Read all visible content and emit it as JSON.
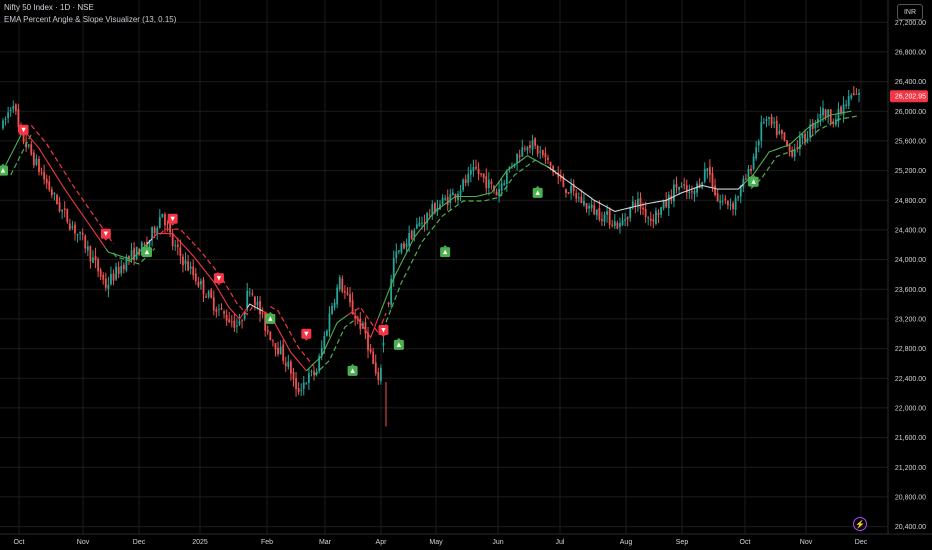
{
  "header": {
    "symbol_line": "Nifty 50 Index · 1D · NSE",
    "indicator_line": "EMA Percent Angle & Slope Visualizer (13, 0.15)"
  },
  "currency": "INR",
  "icons": {
    "replay": "lightning-icon"
  },
  "colors": {
    "background": "#000000",
    "grid": "#1c1c1c",
    "candle_up": "#26a69a",
    "candle_down": "#ef5350",
    "ema_up": "#4caf50",
    "ema_down": "#f23645",
    "ema_flat": "#d1d4dc",
    "last_price_bg": "#f23645",
    "signal_up": "#4caf50",
    "signal_down": "#f23645"
  },
  "chart_data": {
    "type": "candlestick",
    "y_axis": {
      "range": [
        20300,
        27500
      ],
      "ticks": [
        20400,
        20800,
        21200,
        21600,
        22000,
        22400,
        22800,
        23200,
        23600,
        24000,
        24400,
        24800,
        25200,
        25600,
        26000,
        26400,
        26800,
        27200
      ],
      "tick_labels": [
        "20,400.00",
        "20,800.00",
        "21,200.00",
        "21,600.00",
        "22,000.00",
        "22,400.00",
        "22,800.00",
        "23,200.00",
        "23,600.00",
        "24,000.00",
        "24,400.00",
        "24,800.00",
        "25,200.00",
        "25,600.00",
        "26,000.00",
        "26,400.00",
        "26,800.00",
        "27,200.00"
      ],
      "last_price": 26202.95,
      "last_price_label": "26,202.95"
    },
    "x_axis": {
      "labels": [
        "Oct",
        "Nov",
        "Dec",
        "2025",
        "Feb",
        "Mar",
        "Apr",
        "May",
        "Jun",
        "Jul",
        "Aug",
        "Sep",
        "Oct",
        "Nov",
        "Dec"
      ]
    },
    "price_path": [
      [
        0,
        25800
      ],
      [
        4,
        26150
      ],
      [
        6,
        25750
      ],
      [
        12,
        25350
      ],
      [
        22,
        24700
      ],
      [
        32,
        24200
      ],
      [
        40,
        23650
      ],
      [
        48,
        24000
      ],
      [
        56,
        24200
      ],
      [
        62,
        24650
      ],
      [
        66,
        24200
      ],
      [
        74,
        23800
      ],
      [
        82,
        23400
      ],
      [
        86,
        23250
      ],
      [
        92,
        23100
      ],
      [
        96,
        23650
      ],
      [
        102,
        23100
      ],
      [
        108,
        22750
      ],
      [
        112,
        22500
      ],
      [
        114,
        22200
      ],
      [
        117,
        22350
      ],
      [
        122,
        22500
      ],
      [
        128,
        23400
      ],
      [
        131,
        23700
      ],
      [
        136,
        23300
      ],
      [
        141,
        23000
      ],
      [
        146,
        22300
      ],
      [
        152,
        24000
      ],
      [
        160,
        24400
      ],
      [
        168,
        24700
      ],
      [
        176,
        24900
      ],
      [
        184,
        25200
      ],
      [
        192,
        24900
      ],
      [
        198,
        25300
      ],
      [
        204,
        25600
      ],
      [
        210,
        25400
      ],
      [
        218,
        25000
      ],
      [
        228,
        24700
      ],
      [
        236,
        24550
      ],
      [
        240,
        24450
      ],
      [
        246,
        24800
      ],
      [
        252,
        24550
      ],
      [
        258,
        24750
      ],
      [
        262,
        25000
      ],
      [
        268,
        24850
      ],
      [
        274,
        25250
      ],
      [
        278,
        24800
      ],
      [
        284,
        24750
      ],
      [
        290,
        25150
      ],
      [
        296,
        25900
      ],
      [
        302,
        25700
      ],
      [
        306,
        25450
      ],
      [
        312,
        25650
      ],
      [
        318,
        26000
      ],
      [
        324,
        25900
      ],
      [
        330,
        26200
      ],
      [
        333,
        26203
      ]
    ],
    "ema": [
      [
        0,
        25200
      ],
      [
        8,
        25750
      ],
      [
        14,
        25500
      ],
      [
        24,
        24950
      ],
      [
        34,
        24450
      ],
      [
        41,
        24100
      ],
      [
        50,
        24000
      ],
      [
        60,
        24350
      ],
      [
        66,
        24350
      ],
      [
        74,
        24050
      ],
      [
        82,
        23700
      ],
      [
        88,
        23350
      ],
      [
        92,
        23200
      ],
      [
        96,
        23400
      ],
      [
        104,
        23250
      ],
      [
        112,
        22750
      ],
      [
        118,
        22500
      ],
      [
        124,
        22700
      ],
      [
        130,
        23150
      ],
      [
        136,
        23300
      ],
      [
        143,
        22950
      ],
      [
        152,
        23750
      ],
      [
        160,
        24300
      ],
      [
        168,
        24650
      ],
      [
        176,
        24850
      ],
      [
        184,
        24850
      ],
      [
        190,
        24900
      ],
      [
        196,
        25200
      ],
      [
        204,
        25400
      ],
      [
        212,
        25250
      ],
      [
        220,
        25050
      ],
      [
        230,
        24800
      ],
      [
        238,
        24650
      ],
      [
        244,
        24700
      ],
      [
        250,
        24750
      ],
      [
        258,
        24800
      ],
      [
        264,
        24900
      ],
      [
        272,
        25000
      ],
      [
        278,
        24950
      ],
      [
        286,
        24950
      ],
      [
        292,
        25150
      ],
      [
        298,
        25450
      ],
      [
        306,
        25550
      ],
      [
        314,
        25800
      ],
      [
        322,
        25950
      ],
      [
        330,
        26000
      ]
    ],
    "ema_segments": [
      {
        "from": 0,
        "to": 8,
        "state": "up"
      },
      {
        "from": 8,
        "to": 40,
        "state": "down"
      },
      {
        "from": 40,
        "to": 56,
        "state": "up"
      },
      {
        "from": 56,
        "to": 58,
        "state": "flat"
      },
      {
        "from": 58,
        "to": 95,
        "state": "down"
      },
      {
        "from": 95,
        "to": 101,
        "state": "flat"
      },
      {
        "from": 101,
        "to": 118,
        "state": "down"
      },
      {
        "from": 118,
        "to": 134,
        "state": "up"
      },
      {
        "from": 134,
        "to": 146,
        "state": "down"
      },
      {
        "from": 146,
        "to": 212,
        "state": "up"
      },
      {
        "from": 212,
        "to": 288,
        "state": "flat"
      },
      {
        "from": 288,
        "to": 330,
        "state": "up"
      }
    ],
    "signals": [
      {
        "bar": 0,
        "price": 25200,
        "dir": "up"
      },
      {
        "bar": 8,
        "price": 25750,
        "dir": "down"
      },
      {
        "bar": 40,
        "price": 24350,
        "dir": "down"
      },
      {
        "bar": 56,
        "price": 24100,
        "dir": "up"
      },
      {
        "bar": 66,
        "price": 24550,
        "dir": "down"
      },
      {
        "bar": 84,
        "price": 23750,
        "dir": "down"
      },
      {
        "bar": 104,
        "price": 23200,
        "dir": "up"
      },
      {
        "bar": 118,
        "price": 23000,
        "dir": "down"
      },
      {
        "bar": 136,
        "price": 22500,
        "dir": "up"
      },
      {
        "bar": 148,
        "price": 23050,
        "dir": "down"
      },
      {
        "bar": 154,
        "price": 22850,
        "dir": "up"
      },
      {
        "bar": 172,
        "price": 24100,
        "dir": "up"
      },
      {
        "bar": 208,
        "price": 24900,
        "dir": "up"
      },
      {
        "bar": 292,
        "price": 25050,
        "dir": "up"
      }
    ]
  }
}
